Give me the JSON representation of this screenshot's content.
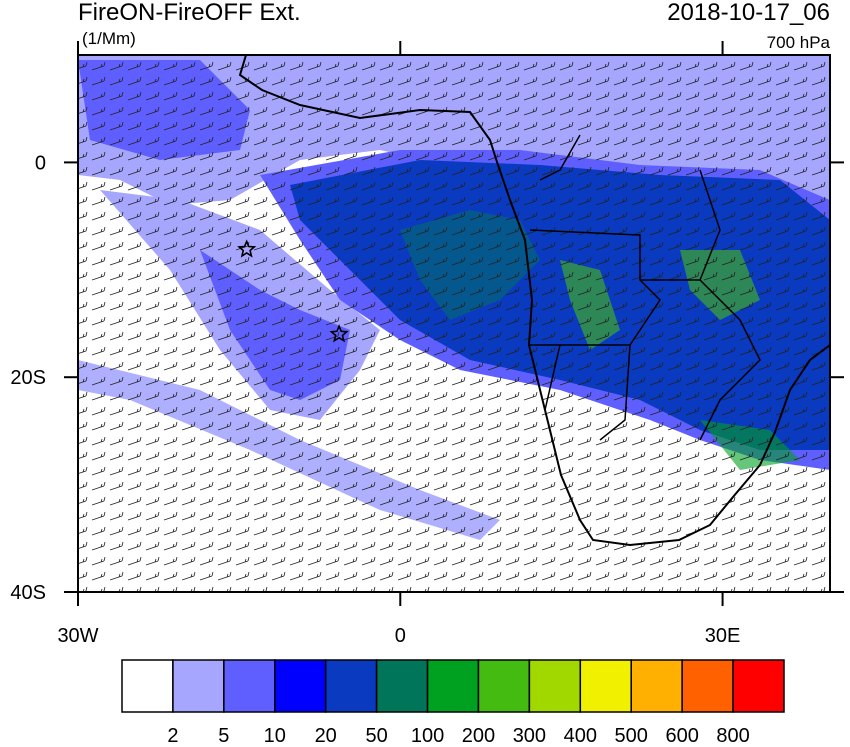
{
  "chart_data": {
    "type": "map",
    "title": "FireON-FireOFF Ext.",
    "units": "(1/Mm)",
    "date": "2018-10-17_06",
    "level": "700 hPa",
    "xlim": [
      -30,
      40
    ],
    "ylim": [
      -40,
      10
    ],
    "xticks": [
      {
        "value": -30,
        "label": "30W"
      },
      0,
      {
        "value": 30,
        "label": "30E"
      }
    ],
    "yticks": [
      0,
      {
        "value": -20,
        "label": "20S"
      },
      {
        "value": -40,
        "label": "40S"
      }
    ],
    "points": {
      "lon": [
        -14.3,
        -5.7
      ],
      "lat": [
        -8.1,
        -16.0
      ]
    },
    "colorbar": {
      "levels": [
        2,
        5,
        10,
        20,
        50,
        100,
        200,
        300,
        400,
        500,
        600,
        800
      ],
      "colors": [
        "#ffffff",
        "#a6a6ff",
        "#5f5fff",
        "#0000ff",
        "#0a3ac0",
        "#00755a",
        "#00a020",
        "#44bb10",
        "#a0d800",
        "#f0f000",
        "#ffb000",
        "#ff6000",
        "#ff0000"
      ]
    }
  }
}
